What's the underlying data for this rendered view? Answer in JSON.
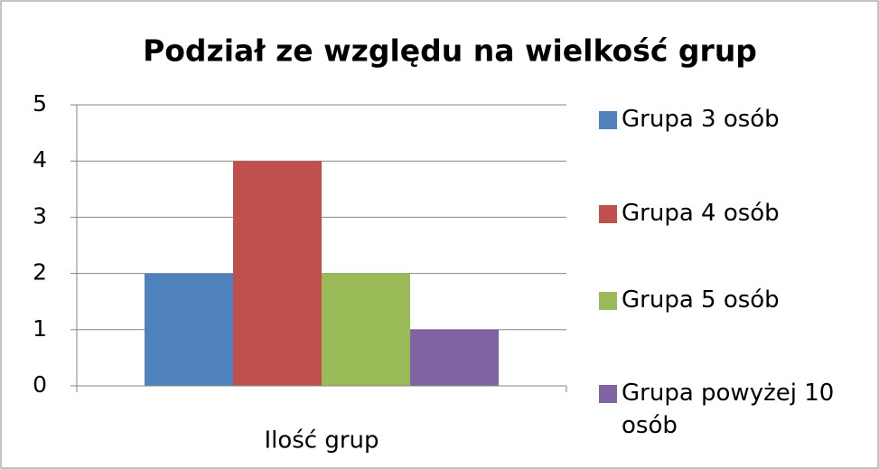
{
  "chart_data": {
    "type": "bar",
    "title": "Podział ze względu na wielkość grup",
    "categories": [
      "Ilość grup"
    ],
    "series": [
      {
        "name": "Grupa 3 osób",
        "color": "#4f81bd",
        "values": [
          2
        ]
      },
      {
        "name": "Grupa 4 osób",
        "color": "#c0504d",
        "values": [
          4
        ]
      },
      {
        "name": "Grupa 5 osób",
        "color": "#9bbb59",
        "values": [
          2
        ]
      },
      {
        "name": "Grupa powyżej 10 osób",
        "color": "#8064a2",
        "values": [
          1
        ]
      }
    ],
    "ylim": [
      0,
      5
    ],
    "yticks": [
      0,
      1,
      2,
      3,
      4,
      5
    ],
    "grid": true,
    "legend": "right"
  }
}
